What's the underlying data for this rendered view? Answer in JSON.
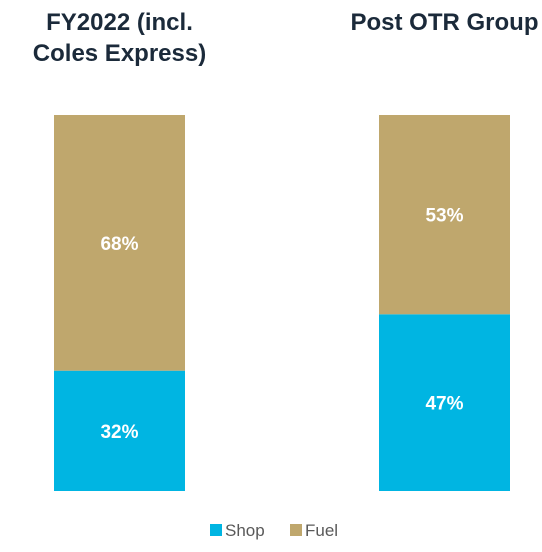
{
  "chart_data": {
    "type": "bar",
    "stacked": true,
    "categories": [
      "FY2022 (incl. Coles Express)",
      "Post OTR Group"
    ],
    "title_lines": [
      [
        "FY2022 (incl.",
        "Coles Express)"
      ],
      [
        "Post OTR Group"
      ]
    ],
    "series": [
      {
        "name": "Shop",
        "values": [
          32,
          47
        ],
        "labels": [
          "32%",
          "47%"
        ],
        "color": "#00b5e2"
      },
      {
        "name": "Fuel",
        "values": [
          68,
          53
        ],
        "labels": [
          "68%",
          "53%"
        ],
        "color": "#bfa76d"
      }
    ],
    "unit": "%",
    "ylim": [
      0,
      100
    ],
    "legend_position": "bottom",
    "grid": false
  }
}
